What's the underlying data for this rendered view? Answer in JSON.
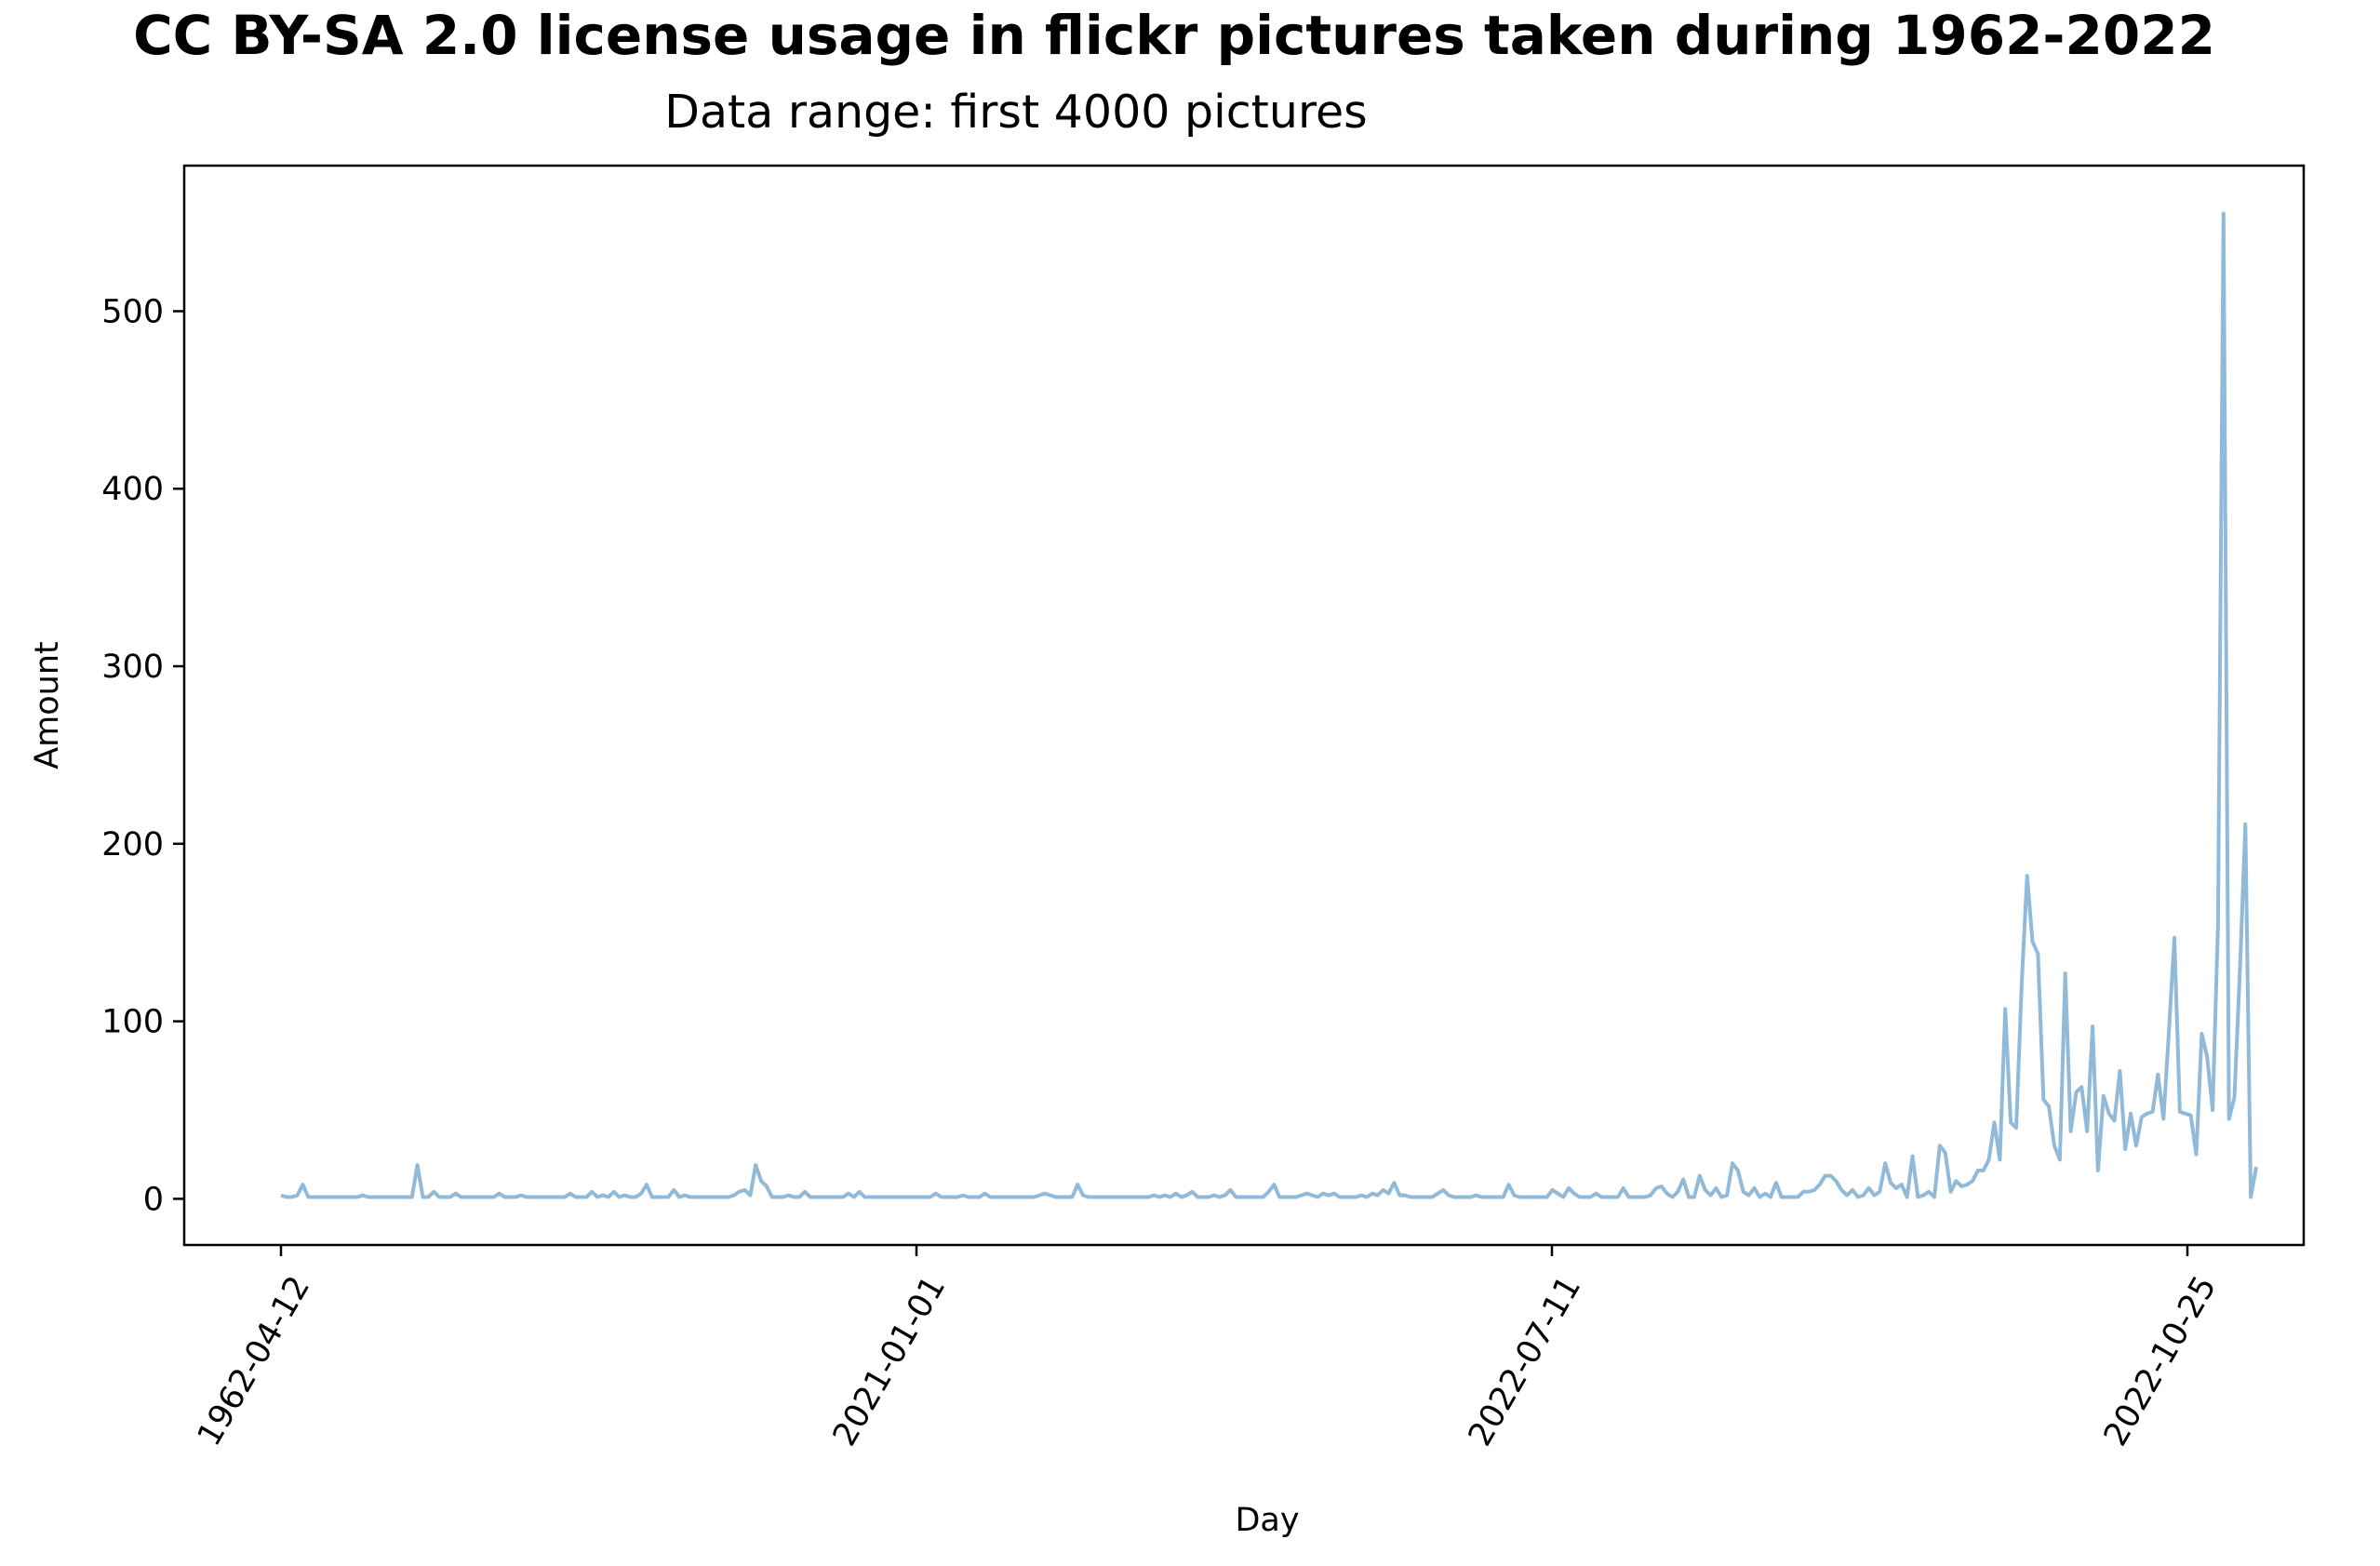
{
  "chart_data": {
    "type": "line",
    "title": "CC BY-SA 2.0 license usage in flickr pictures taken during 1962-2022",
    "subtitle": "Data range: first 4000 pictures",
    "xlabel": "Day",
    "ylabel": "Amount",
    "xtick_labels": [
      "1962-04-12",
      "2021-01-01",
      "2022-07-11",
      "2022-10-25"
    ],
    "xtick_rotation_deg": 60,
    "yticks": [
      0,
      100,
      200,
      300,
      400,
      500
    ],
    "ylim": [
      -26,
      582
    ],
    "grid": false,
    "line_color": "#91b9d8",
    "series": [
      {
        "values": [
          2,
          1,
          1,
          2,
          8,
          1,
          1,
          1,
          1,
          1,
          1,
          1,
          1,
          1,
          1,
          2,
          1,
          1,
          1,
          1,
          1,
          1,
          1,
          1,
          1,
          19,
          1,
          1,
          4,
          1,
          1,
          1,
          3,
          1,
          1,
          1,
          1,
          1,
          1,
          1,
          3,
          1,
          1,
          1,
          2,
          1,
          1,
          1,
          1,
          1,
          1,
          1,
          1,
          3,
          1,
          1,
          1,
          4,
          1,
          2,
          1,
          4,
          1,
          2,
          1,
          1,
          3,
          8,
          1,
          1,
          1,
          1,
          5,
          1,
          2,
          1,
          1,
          1,
          1,
          1,
          1,
          1,
          1,
          2,
          4,
          5,
          2,
          19,
          10,
          7,
          1,
          1,
          1,
          2,
          1,
          1,
          4,
          1,
          1,
          1,
          1,
          1,
          1,
          1,
          3,
          1,
          4,
          1,
          1,
          1,
          1,
          1,
          1,
          1,
          1,
          1,
          1,
          1,
          1,
          1,
          3,
          1,
          1,
          1,
          1,
          2,
          1,
          1,
          1,
          3,
          1,
          1,
          1,
          1,
          1,
          1,
          1,
          1,
          1,
          2,
          3,
          2,
          1,
          1,
          1,
          1,
          8,
          2,
          1,
          1,
          1,
          1,
          1,
          1,
          1,
          1,
          1,
          1,
          1,
          1,
          2,
          1,
          2,
          1,
          3,
          1,
          2,
          4,
          1,
          1,
          1,
          2,
          1,
          2,
          5,
          1,
          1,
          1,
          1,
          1,
          1,
          4,
          8,
          1,
          1,
          1,
          1,
          2,
          3,
          2,
          1,
          3,
          2,
          3,
          1,
          1,
          1,
          1,
          2,
          1,
          3,
          2,
          5,
          3,
          9,
          2,
          2,
          1,
          1,
          1,
          1,
          1,
          3,
          5,
          2,
          1,
          1,
          1,
          1,
          2,
          1,
          1,
          1,
          1,
          1,
          8,
          2,
          1,
          1,
          1,
          1,
          1,
          1,
          5,
          3,
          1,
          6,
          3,
          1,
          1,
          1,
          3,
          1,
          1,
          1,
          1,
          6,
          1,
          1,
          1,
          1,
          2,
          6,
          7,
          3,
          1,
          4,
          11,
          1,
          1,
          13,
          5,
          2,
          6,
          1,
          2,
          20,
          16,
          4,
          2,
          6,
          1,
          3,
          1,
          9,
          1,
          1,
          1,
          1,
          4,
          4,
          5,
          8,
          13,
          13,
          10,
          5,
          2,
          5,
          1,
          2,
          6,
          2,
          4,
          20,
          9,
          6,
          8,
          1,
          24,
          1,
          2,
          4,
          1,
          30,
          26,
          4,
          10,
          7,
          8,
          10,
          16,
          16,
          22,
          43,
          22,
          107,
          43,
          40,
          120,
          182,
          145,
          138,
          56,
          52,
          30,
          22,
          127,
          38,
          60,
          63,
          38,
          97,
          16,
          58,
          48,
          44,
          72,
          28,
          48,
          30,
          46,
          48,
          49,
          70,
          45,
          95,
          147,
          49,
          48,
          47,
          25,
          93,
          80,
          50,
          155,
          555,
          45,
          57,
          128,
          211,
          1,
          18
        ]
      }
    ]
  }
}
